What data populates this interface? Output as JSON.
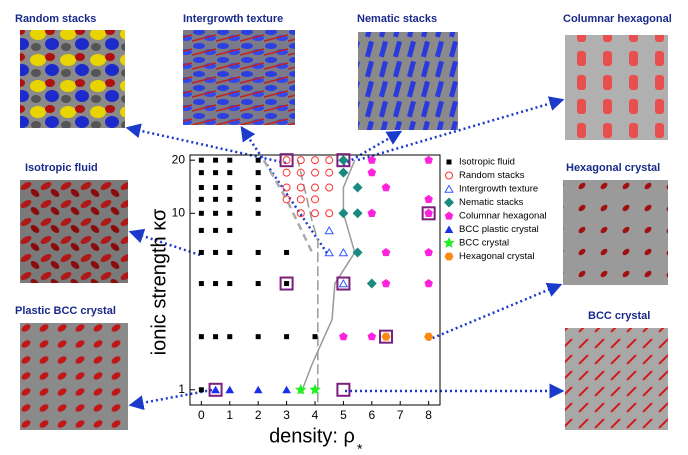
{
  "chart_data": {
    "type": "scatter",
    "y_label": "ionic strength  κσ",
    "x_label": "density: ρ",
    "x_label_sup": "*",
    "xlim": [
      -0.4,
      8.4
    ],
    "ylim": [
      0.82,
      21.4
    ],
    "log_y": true,
    "xticks": [
      0,
      1,
      2,
      3,
      4,
      5,
      6,
      7,
      8
    ],
    "yticks": [
      1,
      10,
      20
    ],
    "legend": "right",
    "series": [
      {
        "name": "Isotropic fluid",
        "color": "#000000",
        "marker": "square",
        "x": [
          0,
          0.5,
          1,
          2,
          0,
          0.5,
          1,
          2,
          0,
          0.5,
          1,
          2,
          0,
          0.5,
          1,
          2,
          0,
          0.5,
          1,
          2,
          0,
          0.5,
          1,
          0,
          0.5,
          1,
          2,
          3,
          0,
          0.5,
          1,
          2,
          3,
          0,
          0.5,
          1,
          2,
          3,
          4,
          0
        ],
        "values": [
          20,
          20,
          20,
          20,
          17,
          17,
          17,
          17,
          14,
          14,
          14,
          14,
          12,
          12,
          12,
          12,
          10,
          10,
          10,
          10,
          8,
          8,
          8,
          6,
          6,
          6,
          6,
          6,
          4,
          4,
          4,
          4,
          4,
          2,
          2,
          2,
          2,
          2,
          2,
          1
        ]
      },
      {
        "name": "Random stacks",
        "color": "#ff3333",
        "marker": "circle-open",
        "x": [
          3,
          3.5,
          4,
          4.5,
          3,
          3.5,
          4,
          4.5,
          3,
          3.5,
          4,
          4.5,
          3,
          3.5,
          4,
          3.5,
          4,
          4.5
        ],
        "values": [
          20,
          20,
          20,
          20,
          17,
          17,
          17,
          17,
          14,
          14,
          14,
          14,
          12,
          12,
          12,
          10,
          10,
          10
        ]
      },
      {
        "name": "Intergrowth texture",
        "color": "#3355ff",
        "marker": "triangle-open",
        "x": [
          4.5,
          4.5,
          5,
          5
        ],
        "values": [
          8,
          6,
          6,
          4
        ]
      },
      {
        "name": "Nematic stacks",
        "color": "#1a8a80",
        "marker": "diamond",
        "x": [
          5,
          5,
          5.5,
          5,
          5.5,
          5.5,
          6
        ],
        "values": [
          20,
          17,
          14,
          10,
          10,
          6,
          4
        ]
      },
      {
        "name": "Columnar hexagonal",
        "color": "#ff22dd",
        "marker": "pentagon",
        "x": [
          6,
          8,
          6,
          6.5,
          8,
          6,
          8,
          6.5,
          8,
          6.5,
          8,
          5,
          6
        ],
        "values": [
          20,
          20,
          17,
          14,
          12,
          10,
          10,
          6,
          6,
          4,
          4,
          2,
          2
        ]
      },
      {
        "name": "BCC plastic crystal",
        "color": "#1a2eee",
        "marker": "triangle",
        "x": [
          0.5,
          1,
          2,
          3
        ],
        "values": [
          1,
          1,
          1,
          1
        ]
      },
      {
        "name": "BCC crystal",
        "color": "#22ee22",
        "marker": "star",
        "x": [
          3.5,
          4
        ],
        "values": [
          1,
          1
        ]
      },
      {
        "name": "Hexagonal crystal",
        "color": "#ff8811",
        "marker": "hexagon",
        "x": [
          6.5,
          8
        ],
        "values": [
          2,
          2
        ]
      }
    ],
    "highlights": {
      "color": "#7a1f7a",
      "x": [
        3,
        5,
        8,
        3,
        5,
        6.5,
        0.5,
        5
      ],
      "values": [
        20,
        20,
        10,
        4,
        4,
        2,
        1,
        1
      ]
    },
    "boundaries": [
      {
        "style": "solid",
        "color": "#999999",
        "x": [
          3.5,
          3.9,
          4.6,
          4.7,
          5.4,
          5.0,
          5.0,
          5.4
        ],
        "values": [
          0.95,
          1.4,
          2.5,
          4,
          6,
          10,
          14,
          20
        ]
      },
      {
        "style": "long-dash",
        "color": "#999999",
        "x": [
          4.1,
          4.1,
          3.9,
          3.4
        ],
        "values": [
          0.85,
          7,
          9,
          20
        ]
      },
      {
        "style": "dash",
        "color": "#aaaaaa",
        "x": [
          2.2,
          3.0,
          3.9
        ],
        "values": [
          20,
          12,
          6
        ]
      }
    ],
    "panels": [
      "Random stacks",
      "Intergrowth texture",
      "Nematic stacks",
      "Columnar hexagonal",
      "Isotropic  fluid",
      "Hexagonal crystal",
      "Plastic BCC crystal",
      "BCC crystal"
    ]
  }
}
